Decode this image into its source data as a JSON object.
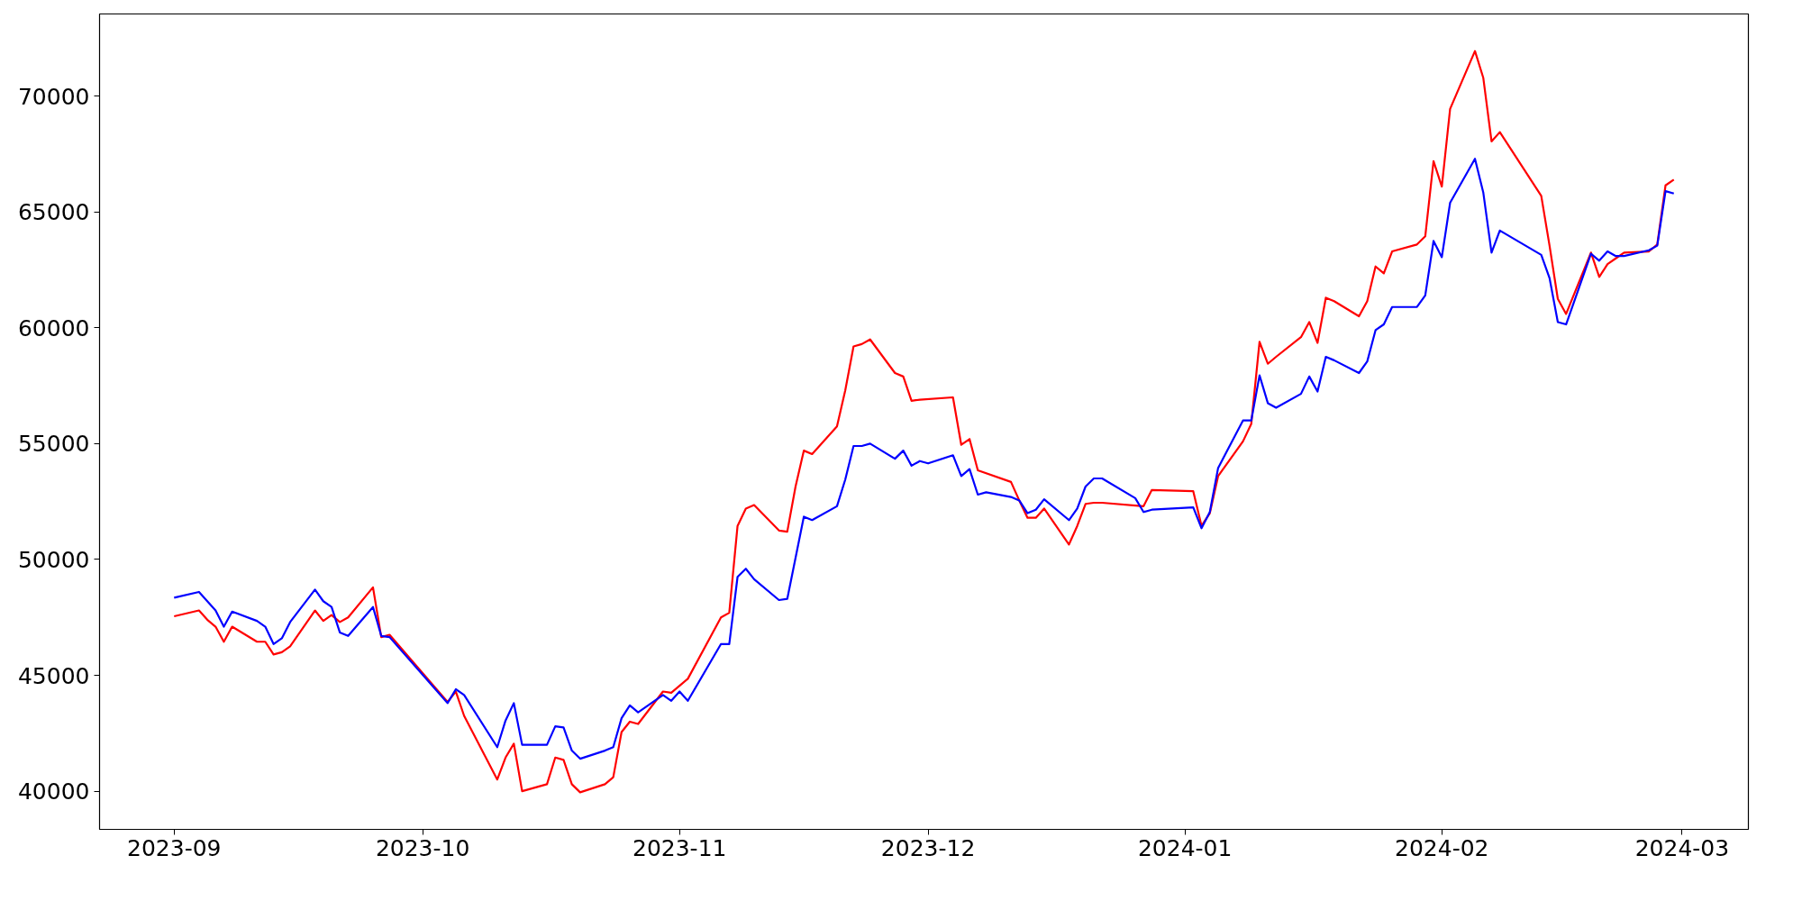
{
  "chart_data": {
    "type": "line",
    "grid": false,
    "line_style": "solid",
    "xlim": [
      "2023-08-23",
      "2024-03-09"
    ],
    "ylim": [
      38350,
      73550
    ],
    "xticks": [
      {
        "value": "2023-09-01",
        "label": "2023-09"
      },
      {
        "value": "2023-10-01",
        "label": "2023-10"
      },
      {
        "value": "2023-11-01",
        "label": "2023-11"
      },
      {
        "value": "2023-12-01",
        "label": "2023-12"
      },
      {
        "value": "2024-01-01",
        "label": "2024-01"
      },
      {
        "value": "2024-02-01",
        "label": "2024-02"
      },
      {
        "value": "2024-03-01",
        "label": "2024-03"
      }
    ],
    "yticks": [
      40000,
      45000,
      50000,
      55000,
      60000,
      65000,
      70000
    ],
    "series": [
      {
        "color": "#ff0000",
        "x": [
          "2023-09-01",
          "2023-09-04",
          "2023-09-05",
          "2023-09-06",
          "2023-09-07",
          "2023-09-08",
          "2023-09-11",
          "2023-09-12",
          "2023-09-13",
          "2023-09-14",
          "2023-09-15",
          "2023-09-18",
          "2023-09-19",
          "2023-09-20",
          "2023-09-21",
          "2023-09-22",
          "2023-09-25",
          "2023-09-26",
          "2023-09-27",
          "2023-10-04",
          "2023-10-05",
          "2023-10-06",
          "2023-10-10",
          "2023-10-11",
          "2023-10-12",
          "2023-10-13",
          "2023-10-16",
          "2023-10-17",
          "2023-10-18",
          "2023-10-19",
          "2023-10-20",
          "2023-10-23",
          "2023-10-24",
          "2023-10-25",
          "2023-10-26",
          "2023-10-27",
          "2023-10-30",
          "2023-10-31",
          "2023-11-01",
          "2023-11-02",
          "2023-11-06",
          "2023-11-07",
          "2023-11-08",
          "2023-11-09",
          "2023-11-10",
          "2023-11-13",
          "2023-11-14",
          "2023-11-15",
          "2023-11-16",
          "2023-11-17",
          "2023-11-20",
          "2023-11-21",
          "2023-11-22",
          "2023-11-23",
          "2023-11-24",
          "2023-11-27",
          "2023-11-28",
          "2023-11-29",
          "2023-11-30",
          "2023-12-04",
          "2023-12-05",
          "2023-12-06",
          "2023-12-07",
          "2023-12-11",
          "2023-12-12",
          "2023-12-13",
          "2023-12-14",
          "2023-12-15",
          "2023-12-18",
          "2023-12-19",
          "2023-12-20",
          "2023-12-21",
          "2023-12-22",
          "2023-12-27",
          "2023-12-28",
          "2024-01-02",
          "2024-01-03",
          "2024-01-04",
          "2024-01-05",
          "2024-01-08",
          "2024-01-09",
          "2024-01-10",
          "2024-01-11",
          "2024-01-12",
          "2024-01-15",
          "2024-01-16",
          "2024-01-17",
          "2024-01-18",
          "2024-01-19",
          "2024-01-22",
          "2024-01-23",
          "2024-01-24",
          "2024-01-25",
          "2024-01-26",
          "2024-01-29",
          "2024-01-30",
          "2024-01-31",
          "2024-02-01",
          "2024-02-02",
          "2024-02-05",
          "2024-02-06",
          "2024-02-07",
          "2024-02-08",
          "2024-02-13",
          "2024-02-14",
          "2024-02-15",
          "2024-02-16",
          "2024-02-19",
          "2024-02-20",
          "2024-02-21",
          "2024-02-22",
          "2024-02-23",
          "2024-02-26",
          "2024-02-27",
          "2024-02-28",
          "2024-02-29"
        ],
        "values": [
          47550,
          47800,
          47400,
          47100,
          46450,
          47100,
          46450,
          46450,
          45900,
          46000,
          46250,
          47800,
          47350,
          47600,
          47300,
          47500,
          48800,
          46650,
          46750,
          43850,
          44300,
          43250,
          40500,
          41450,
          42050,
          40000,
          40300,
          41450,
          41350,
          40300,
          39950,
          40300,
          40600,
          42550,
          43000,
          42900,
          44300,
          44250,
          44550,
          44850,
          47500,
          47700,
          51450,
          52200,
          52350,
          51250,
          51200,
          53150,
          54700,
          54550,
          55750,
          57300,
          59200,
          59300,
          59500,
          58050,
          57900,
          56850,
          56900,
          57000,
          54950,
          55200,
          53850,
          53350,
          52550,
          51800,
          51800,
          52200,
          50650,
          51450,
          52400,
          52450,
          52450,
          52300,
          53000,
          52950,
          51450,
          52000,
          53600,
          55100,
          55850,
          59400,
          58450,
          58750,
          59600,
          60250,
          59350,
          61300,
          61150,
          60500,
          61150,
          62650,
          62350,
          63300,
          63600,
          63950,
          67200,
          66100,
          69450,
          71950,
          70800,
          68050,
          68450,
          65700,
          63550,
          61250,
          60600,
          63250,
          62200,
          62750,
          63000,
          63250,
          63300,
          63600,
          66150,
          66400
        ]
      },
      {
        "color": "#0000ff",
        "x": [
          "2023-09-01",
          "2023-09-04",
          "2023-09-06",
          "2023-09-07",
          "2023-09-08",
          "2023-09-11",
          "2023-09-12",
          "2023-09-13",
          "2023-09-14",
          "2023-09-15",
          "2023-09-18",
          "2023-09-19",
          "2023-09-20",
          "2023-09-21",
          "2023-09-22",
          "2023-09-25",
          "2023-09-26",
          "2023-09-27",
          "2023-10-04",
          "2023-10-05",
          "2023-10-06",
          "2023-10-10",
          "2023-10-11",
          "2023-10-12",
          "2023-10-13",
          "2023-10-16",
          "2023-10-17",
          "2023-10-18",
          "2023-10-19",
          "2023-10-20",
          "2023-10-23",
          "2023-10-24",
          "2023-10-25",
          "2023-10-26",
          "2023-10-27",
          "2023-10-30",
          "2023-10-31",
          "2023-11-01",
          "2023-11-02",
          "2023-11-06",
          "2023-11-07",
          "2023-11-08",
          "2023-11-09",
          "2023-11-10",
          "2023-11-13",
          "2023-11-14",
          "2023-11-16",
          "2023-11-17",
          "2023-11-20",
          "2023-11-21",
          "2023-11-22",
          "2023-11-23",
          "2023-11-24",
          "2023-11-27",
          "2023-11-28",
          "2023-11-29",
          "2023-11-30",
          "2023-12-01",
          "2023-12-04",
          "2023-12-05",
          "2023-12-06",
          "2023-12-07",
          "2023-12-08",
          "2023-12-11",
          "2023-12-12",
          "2023-12-13",
          "2023-12-14",
          "2023-12-15",
          "2023-12-18",
          "2023-12-19",
          "2023-12-20",
          "2023-12-21",
          "2023-12-22",
          "2023-12-26",
          "2023-12-27",
          "2023-12-28",
          "2024-01-02",
          "2024-01-03",
          "2024-01-04",
          "2024-01-05",
          "2024-01-08",
          "2024-01-09",
          "2024-01-10",
          "2024-01-11",
          "2024-01-12",
          "2024-01-15",
          "2024-01-16",
          "2024-01-17",
          "2024-01-18",
          "2024-01-19",
          "2024-01-22",
          "2024-01-23",
          "2024-01-24",
          "2024-01-25",
          "2024-01-26",
          "2024-01-29",
          "2024-01-30",
          "2024-01-31",
          "2024-02-01",
          "2024-02-02",
          "2024-02-05",
          "2024-02-06",
          "2024-02-07",
          "2024-02-08",
          "2024-02-13",
          "2024-02-14",
          "2024-02-15",
          "2024-02-16",
          "2024-02-19",
          "2024-02-20",
          "2024-02-21",
          "2024-02-22",
          "2024-02-23",
          "2024-02-26",
          "2024-02-27",
          "2024-02-28",
          "2024-02-29"
        ],
        "values": [
          48350,
          48600,
          47800,
          47100,
          47750,
          47350,
          47100,
          46350,
          46600,
          47300,
          48700,
          48200,
          47950,
          46850,
          46700,
          47950,
          46700,
          46650,
          43800,
          44400,
          44150,
          41900,
          43050,
          43800,
          42000,
          42000,
          42800,
          42750,
          41750,
          41400,
          41750,
          41900,
          43150,
          43700,
          43400,
          44150,
          43900,
          44300,
          43900,
          46350,
          46350,
          49250,
          49600,
          49150,
          48250,
          48300,
          51850,
          51700,
          52300,
          53450,
          54900,
          54900,
          55000,
          54350,
          54700,
          54050,
          54250,
          54150,
          54500,
          53600,
          53900,
          52800,
          52900,
          52700,
          52550,
          52000,
          52150,
          52600,
          51700,
          52200,
          53150,
          53500,
          53500,
          52650,
          52050,
          52150,
          52250,
          51350,
          52050,
          53950,
          56000,
          56000,
          57950,
          56750,
          56550,
          57150,
          57900,
          57250,
          58750,
          58600,
          58050,
          58550,
          59900,
          60150,
          60900,
          60900,
          61400,
          63750,
          63050,
          65400,
          67300,
          65850,
          63250,
          64200,
          63150,
          62150,
          60250,
          60150,
          63200,
          62900,
          63300,
          63100,
          63100,
          63350,
          63550,
          65900,
          65800
        ]
      }
    ]
  }
}
